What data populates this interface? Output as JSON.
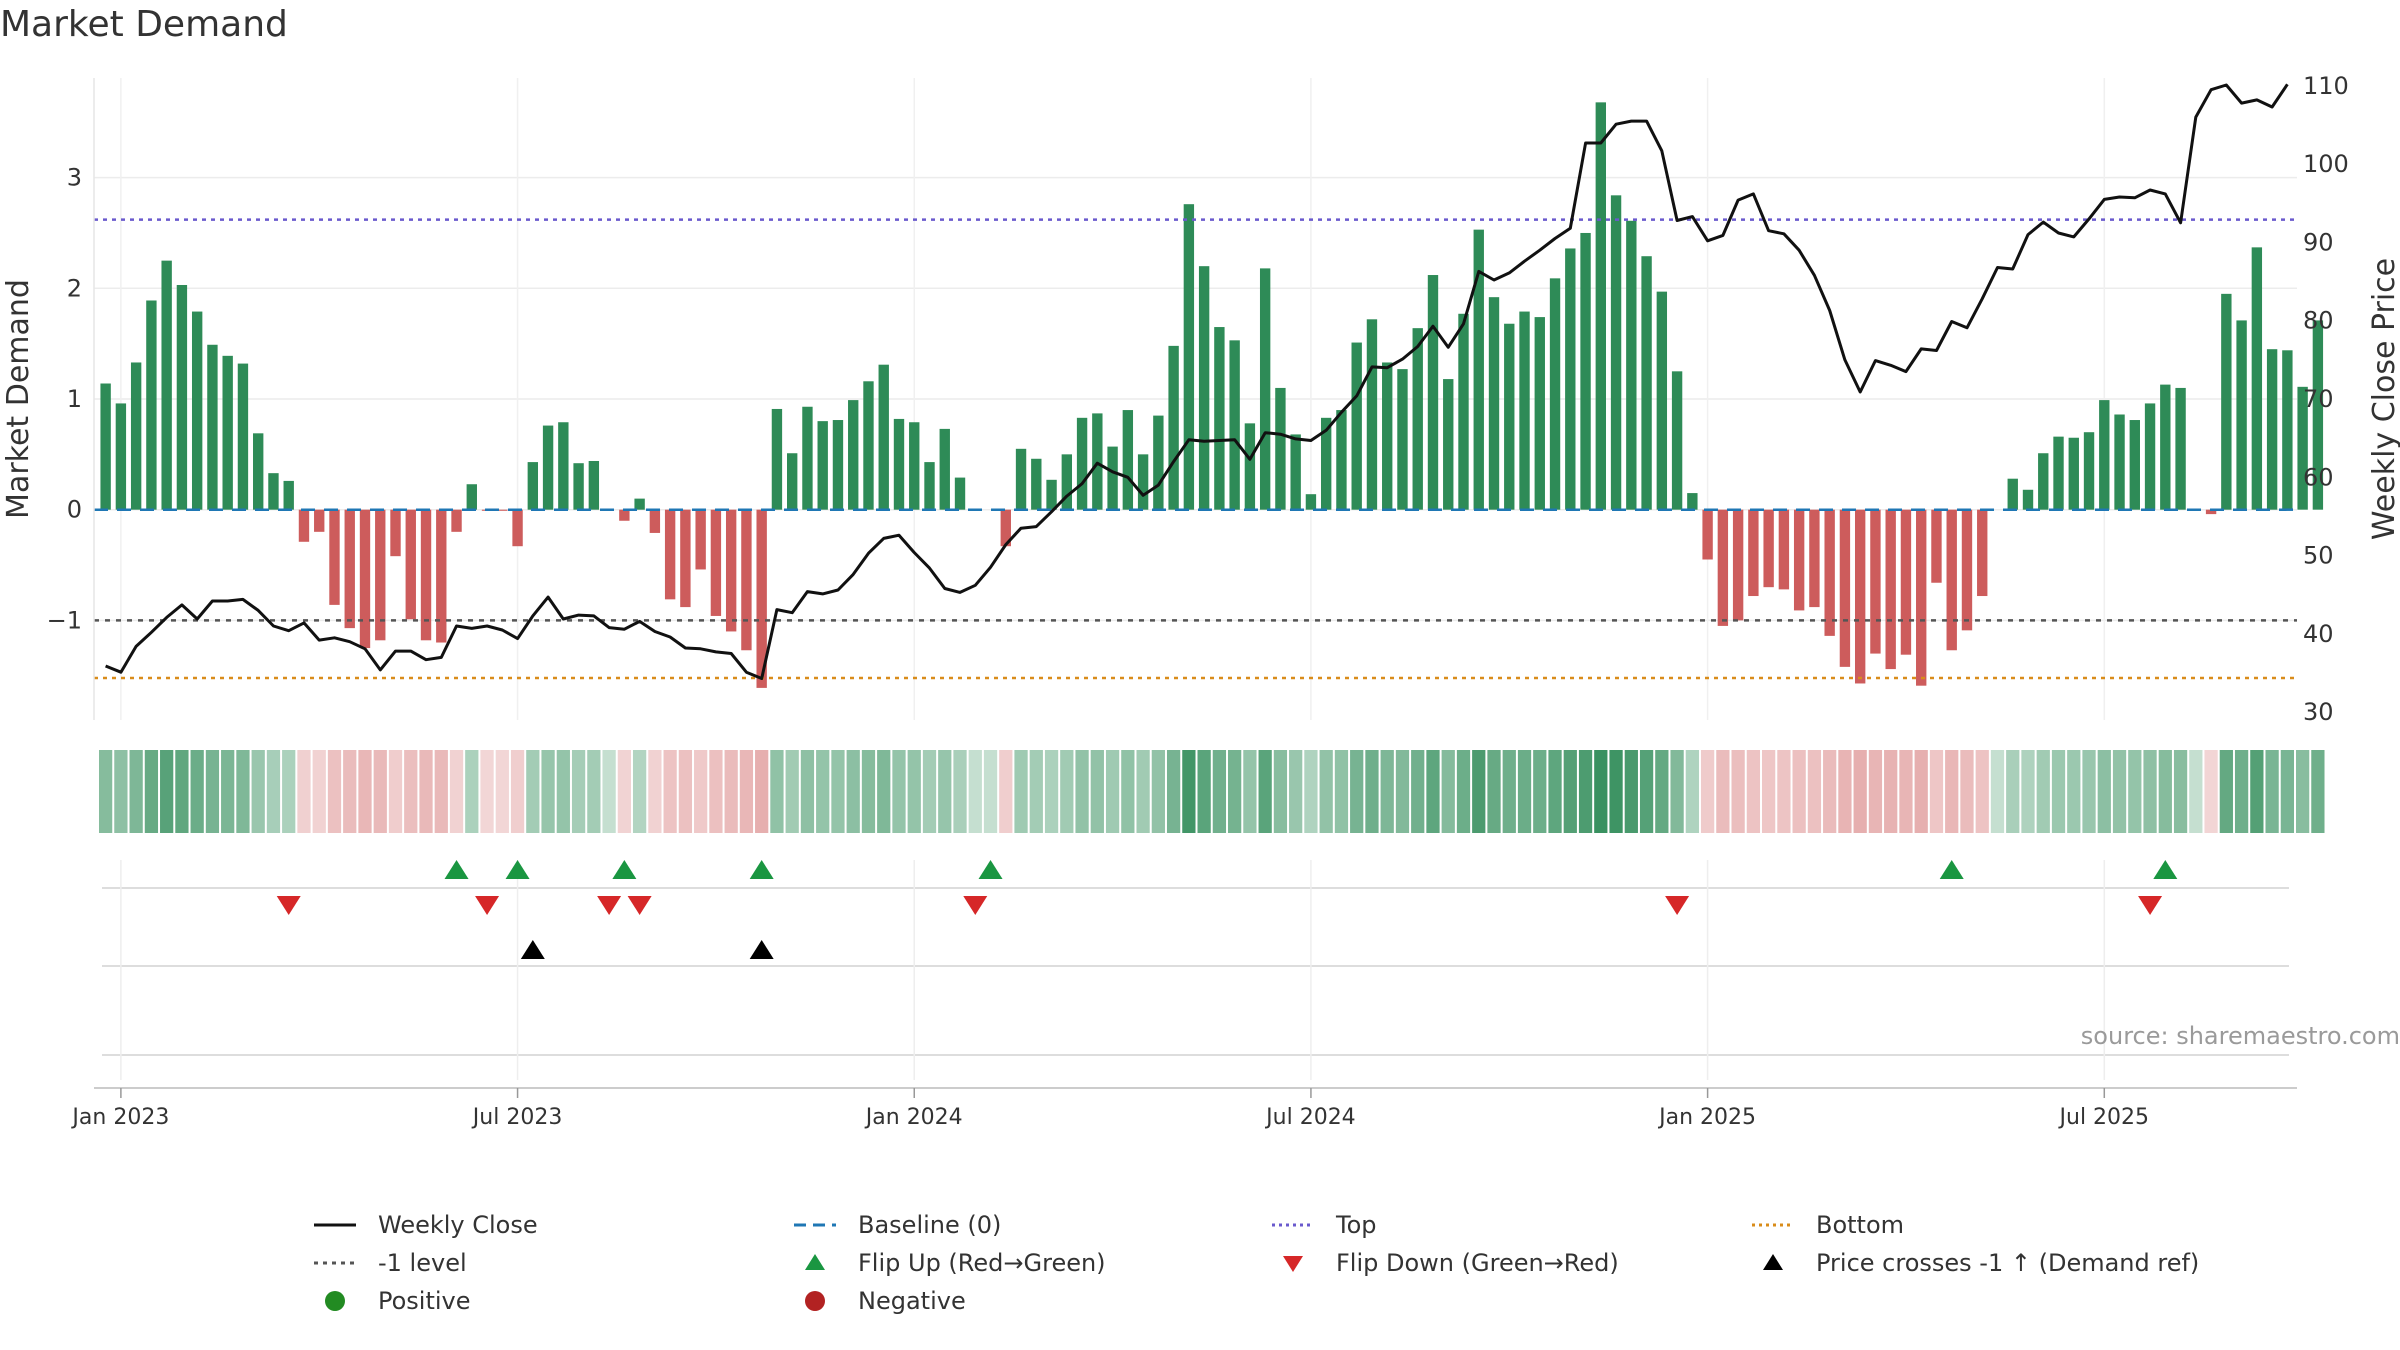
{
  "title": "Market Demand",
  "source": "source: sharemaestro.com",
  "colors": {
    "positive": "#2e8b57",
    "negative": "#cd5c5c",
    "price": "#111111",
    "baseline": "#1f77b4",
    "top": "#6a5acd",
    "bottom": "#d98c1a",
    "minus1": "#555555",
    "flip_up": "#1a9641",
    "flip_down": "#d62728",
    "cross": "#000000"
  },
  "legend": {
    "weekly_close": "Weekly Close",
    "baseline": "Baseline (0)",
    "top": "Top",
    "bottom": "Bottom",
    "minus1": "-1 level",
    "flip_up": "Flip Up (Red→Green)",
    "flip_down": "Flip Down (Green→Red)",
    "cross": "Price crosses -1 ↑ (Demand ref)",
    "positive": "Positive",
    "negative": "Negative"
  },
  "chart_data": {
    "type": "bar",
    "title": "Market Demand",
    "ylabel": "Market Demand",
    "y2label": "Weekly Close Price",
    "ylim": [
      -1.9,
      3.9
    ],
    "y2lim": [
      29,
      111
    ],
    "yticks": [
      -1,
      0,
      1,
      2,
      3
    ],
    "ytick_labels": [
      "−1",
      "0",
      "1",
      "2",
      "3"
    ],
    "y2ticks": [
      30,
      40,
      50,
      60,
      70,
      80,
      90,
      100,
      110
    ],
    "x_tick_labels": [
      "Jan 2023",
      "Jul 2023",
      "Jan 2024",
      "Jul 2024",
      "Jan 2025",
      "Jul 2025"
    ],
    "x_tick_weeks": [
      1,
      27,
      53,
      79,
      105,
      131
    ],
    "start_week": -0.5,
    "end_week": 143.5,
    "levels": {
      "top": 2.62,
      "bottom": -1.52,
      "minus1": -1.0,
      "baseline": 0
    },
    "demand": [
      1.14,
      0.96,
      1.33,
      1.89,
      2.25,
      2.03,
      1.79,
      1.49,
      1.39,
      1.32,
      0.69,
      0.33,
      0.26,
      -0.29,
      -0.2,
      -0.86,
      -1.07,
      -1.25,
      -1.18,
      -0.42,
      -0.99,
      -1.18,
      -1.2,
      -0.2,
      0.23,
      -0.01,
      -0.01,
      -0.33,
      0.43,
      0.76,
      0.79,
      0.42,
      0.44,
      0.0,
      -0.1,
      0.1,
      -0.21,
      -0.81,
      -0.88,
      -0.54,
      -0.96,
      -1.1,
      -1.27,
      -1.61,
      0.91,
      0.51,
      0.93,
      0.8,
      0.81,
      0.99,
      1.16,
      1.31,
      0.82,
      0.79,
      0.43,
      0.73,
      0.29,
      0.0,
      0.0,
      -0.33,
      0.55,
      0.46,
      0.27,
      0.5,
      0.83,
      0.87,
      0.57,
      0.9,
      0.5,
      0.85,
      1.48,
      2.76,
      2.2,
      1.65,
      1.53,
      0.78,
      2.18,
      1.1,
      0.68,
      0.14,
      0.83,
      0.9,
      1.51,
      1.72,
      1.33,
      1.27,
      1.64,
      2.12,
      1.18,
      1.77,
      2.53,
      1.92,
      1.68,
      1.79,
      1.74,
      2.09,
      2.36,
      2.5,
      3.68,
      2.84,
      2.61,
      2.29,
      1.97,
      1.25,
      0.15,
      -0.45,
      -1.05,
      -1.0,
      -0.78,
      -0.7,
      -0.72,
      -0.91,
      -0.88,
      -1.14,
      -1.42,
      -1.57,
      -1.3,
      -1.44,
      -1.31,
      -1.59,
      -0.66,
      -1.27,
      -1.09,
      -0.78,
      0.0,
      0.28,
      0.18,
      0.51,
      0.66,
      0.65,
      0.7,
      0.99,
      0.86,
      0.81,
      0.96,
      1.13,
      1.1,
      0.0,
      -0.04,
      1.95,
      1.71,
      2.37,
      1.45,
      1.44,
      1.11,
      1.71
    ],
    "close": [
      35.9,
      35.1,
      38.4,
      40.2,
      42.1,
      43.7,
      41.9,
      44.2,
      44.2,
      44.4,
      43.0,
      41.0,
      40.4,
      41.4,
      39.2,
      39.5,
      39.0,
      38.1,
      35.4,
      37.8,
      37.8,
      36.7,
      37.0,
      41.0,
      40.7,
      41.0,
      40.5,
      39.4,
      42.3,
      44.7,
      41.9,
      42.4,
      42.3,
      40.8,
      40.6,
      41.6,
      40.3,
      39.6,
      38.2,
      38.1,
      37.7,
      37.5,
      35.1,
      34.3,
      43.1,
      42.7,
      45.4,
      45.1,
      45.6,
      47.6,
      50.3,
      52.2,
      52.6,
      50.4,
      48.4,
      45.8,
      45.3,
      46.2,
      48.5,
      51.4,
      53.5,
      53.7,
      55.6,
      57.6,
      59.2,
      61.8,
      60.7,
      60.0,
      57.7,
      59.0,
      62.0,
      64.8,
      64.6,
      64.7,
      64.8,
      62.3,
      65.7,
      65.5,
      64.9,
      64.7,
      66.0,
      68.3,
      70.4,
      74.1,
      74.0,
      75.1,
      76.7,
      79.3,
      76.6,
      79.6,
      86.3,
      85.2,
      86.1,
      87.6,
      89.0,
      90.5,
      91.8,
      102.7,
      102.7,
      105.1,
      105.5,
      105.5,
      101.7,
      92.8,
      93.3,
      90.2,
      90.9,
      95.4,
      96.2,
      91.5,
      91.1,
      89.0,
      85.8,
      81.3,
      75.0,
      70.9,
      74.9,
      74.3,
      73.5,
      76.4,
      76.2,
      79.9,
      79.1,
      82.8,
      86.8,
      86.6,
      91.0,
      92.6,
      91.2,
      90.7,
      93.0,
      95.5,
      95.8,
      95.7,
      96.7,
      96.2,
      92.5,
      106.0,
      109.5,
      110.1,
      107.8,
      108.2,
      107.3,
      110.2
    ],
    "flip_up_weeks": [
      23,
      27,
      34,
      43,
      58,
      121,
      135
    ],
    "flip_down_weeks": [
      12,
      25,
      33,
      35,
      57,
      103,
      134
    ],
    "cross_weeks": [
      28,
      43
    ]
  }
}
